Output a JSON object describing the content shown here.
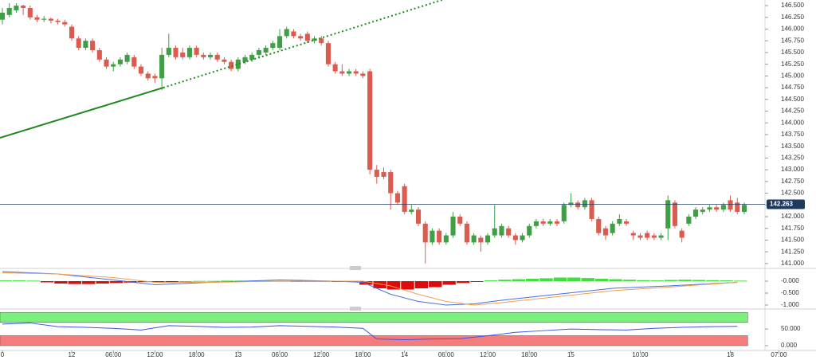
{
  "chart_data": [
    {
      "type": "candlestick",
      "xlim": [
        -0.345,
        117.35
      ],
      "x": [
        0,
        1,
        2,
        3,
        4,
        5,
        6,
        7,
        8,
        9,
        10,
        11,
        12,
        13,
        14,
        15,
        16,
        17,
        18,
        19,
        20,
        21,
        22,
        23,
        24,
        25,
        26,
        27,
        28,
        29,
        30,
        31,
        32,
        33,
        34,
        35,
        36,
        37,
        38,
        39,
        40,
        41,
        42,
        43,
        44,
        45,
        46,
        47,
        48,
        49,
        50,
        51,
        52,
        53,
        54,
        55,
        56,
        57,
        58,
        59,
        60,
        61,
        62,
        63,
        64,
        65,
        66,
        67,
        68,
        69,
        70,
        71,
        72,
        73,
        74,
        75,
        76,
        77,
        78,
        79,
        80,
        81,
        82,
        83,
        84,
        85,
        86,
        87,
        88,
        89,
        90,
        91,
        92,
        93,
        94,
        95,
        96,
        97,
        98,
        99,
        100,
        101,
        102,
        103,
        104,
        105,
        106,
        107
      ],
      "open": [
        146.2,
        146.3,
        146.4,
        146.5,
        146.45,
        146.25,
        146.2,
        146.22,
        146.18,
        146.15,
        146.05,
        145.8,
        145.6,
        145.75,
        145.55,
        145.35,
        145.2,
        145.25,
        145.3,
        145.4,
        145.2,
        145.05,
        145.0,
        144.95,
        145.45,
        145.6,
        145.5,
        145.4,
        145.6,
        145.45,
        145.4,
        145.45,
        145.35,
        145.3,
        145.15,
        145.3,
        145.35,
        145.45,
        145.5,
        145.6,
        145.6,
        145.85,
        145.95,
        145.85,
        145.9,
        145.75,
        145.8,
        145.7,
        145.25,
        145.1,
        145.05,
        145.1,
        145.05,
        145.1,
        143.0,
        142.95,
        142.95,
        142.5,
        142.65,
        142.1,
        142.15,
        141.85,
        141.45,
        141.7,
        141.45,
        141.6,
        142.0,
        141.85,
        141.45,
        141.55,
        141.45,
        141.6,
        141.6,
        141.75,
        141.6,
        141.5,
        141.6,
        141.8,
        141.9,
        141.85,
        141.9,
        141.9,
        142.25,
        142.3,
        142.2,
        142.35,
        141.95,
        141.75,
        141.65,
        141.85,
        141.9,
        141.65,
        141.6,
        141.65,
        141.6,
        141.55,
        141.75,
        142.3,
        141.7,
        141.85,
        142.0,
        142.1,
        142.15,
        142.2,
        142.15,
        142.35,
        142.3,
        142.1
      ],
      "high": [
        146.45,
        146.55,
        146.55,
        146.52,
        146.5,
        146.3,
        146.28,
        146.25,
        146.22,
        146.2,
        146.1,
        145.85,
        145.8,
        145.8,
        145.6,
        145.4,
        145.3,
        145.4,
        145.5,
        145.45,
        145.25,
        145.1,
        145.05,
        145.6,
        145.9,
        145.65,
        145.6,
        145.65,
        145.65,
        145.5,
        145.5,
        145.5,
        145.4,
        145.35,
        145.4,
        145.45,
        145.5,
        145.6,
        145.65,
        145.75,
        146.0,
        146.05,
        146.0,
        145.9,
        145.95,
        145.85,
        145.85,
        145.75,
        145.3,
        145.25,
        145.15,
        145.15,
        145.1,
        145.15,
        143.1,
        143.05,
        143.0,
        142.55,
        142.7,
        142.25,
        142.2,
        141.9,
        141.75,
        141.75,
        141.65,
        142.1,
        142.05,
        141.9,
        141.65,
        141.6,
        141.65,
        142.25,
        141.85,
        141.8,
        141.65,
        141.65,
        141.85,
        141.95,
        141.95,
        141.95,
        141.95,
        142.3,
        142.5,
        142.35,
        142.4,
        142.4,
        142.0,
        141.8,
        141.9,
        142.05,
        141.95,
        141.7,
        141.65,
        141.7,
        141.65,
        141.65,
        142.45,
        142.35,
        141.75,
        142.05,
        142.2,
        142.2,
        142.25,
        142.25,
        142.3,
        142.45,
        142.4,
        142.3
      ],
      "low": [
        146.1,
        146.25,
        146.35,
        146.3,
        146.2,
        146.15,
        146.15,
        146.12,
        146.1,
        146.05,
        145.75,
        145.55,
        145.55,
        145.5,
        145.3,
        145.15,
        145.1,
        145.2,
        145.25,
        145.15,
        145.0,
        144.9,
        144.85,
        144.7,
        145.4,
        145.35,
        145.35,
        145.35,
        145.4,
        145.35,
        145.35,
        145.3,
        145.25,
        145.1,
        145.1,
        145.25,
        145.3,
        145.4,
        145.45,
        145.55,
        145.55,
        145.8,
        145.8,
        145.75,
        145.7,
        145.7,
        145.65,
        145.2,
        145.05,
        145.0,
        145.0,
        145.0,
        144.95,
        142.9,
        142.7,
        142.8,
        142.15,
        142.25,
        142.05,
        142.05,
        141.8,
        141.0,
        141.4,
        141.4,
        141.4,
        141.55,
        141.8,
        141.4,
        141.4,
        141.25,
        141.4,
        141.55,
        141.55,
        141.55,
        141.4,
        141.45,
        141.55,
        141.75,
        141.8,
        141.8,
        141.8,
        141.85,
        142.2,
        142.15,
        142.15,
        141.9,
        141.6,
        141.5,
        141.6,
        141.8,
        141.8,
        141.5,
        141.5,
        141.5,
        141.5,
        141.5,
        141.5,
        141.75,
        141.45,
        141.8,
        141.95,
        142.05,
        142.1,
        142.1,
        142.1,
        142.1,
        142.05,
        142.05
      ],
      "close": [
        146.35,
        146.45,
        146.5,
        146.45,
        146.25,
        146.2,
        146.22,
        146.18,
        146.15,
        146.1,
        145.8,
        145.6,
        145.75,
        145.55,
        145.35,
        145.2,
        145.25,
        145.35,
        145.45,
        145.2,
        145.05,
        144.95,
        144.95,
        145.45,
        145.6,
        145.4,
        145.4,
        145.6,
        145.45,
        145.4,
        145.45,
        145.35,
        145.3,
        145.15,
        145.35,
        145.4,
        145.45,
        145.55,
        145.6,
        145.7,
        145.85,
        146.0,
        145.85,
        145.8,
        145.75,
        145.8,
        145.7,
        145.25,
        145.1,
        145.05,
        145.1,
        145.05,
        145.0,
        143.0,
        142.85,
        142.85,
        142.5,
        142.3,
        142.1,
        142.15,
        141.85,
        141.45,
        141.7,
        141.45,
        141.6,
        142.0,
        141.85,
        141.45,
        141.6,
        141.45,
        141.6,
        141.75,
        141.8,
        141.6,
        141.5,
        141.6,
        141.8,
        141.9,
        141.85,
        141.9,
        141.85,
        142.25,
        142.3,
        142.2,
        142.35,
        141.95,
        141.65,
        141.6,
        141.85,
        141.95,
        141.85,
        141.6,
        141.55,
        141.55,
        141.55,
        141.6,
        142.35,
        141.8,
        141.55,
        142.0,
        142.15,
        142.15,
        142.2,
        142.15,
        142.25,
        142.15,
        142.1,
        142.25
      ],
      "up_color": "#3e9f45",
      "down_color": "#dc5b4f",
      "ylim": [
        140.93,
        146.62
      ],
      "yticks": [
        {
          "value": 141,
          "label": "141.000"
        },
        {
          "value": 141.25,
          "label": "141.250"
        },
        {
          "value": 141.5,
          "label": "141.500"
        },
        {
          "value": 141.75,
          "label": "141.750"
        },
        {
          "value": 142,
          "label": "142.000"
        },
        {
          "value": 142.25,
          "label": "142.250"
        },
        {
          "value": 142.5,
          "label": "142.500"
        },
        {
          "value": 142.75,
          "label": "142.750"
        },
        {
          "value": 143,
          "label": "143.000"
        },
        {
          "value": 143.25,
          "label": "143.250"
        },
        {
          "value": 143.5,
          "label": "143.500"
        },
        {
          "value": 143.75,
          "label": "143.750"
        },
        {
          "value": 144,
          "label": "144.000"
        },
        {
          "value": 144.25,
          "label": "144.250"
        },
        {
          "value": 144.5,
          "label": "144.500"
        },
        {
          "value": 144.75,
          "label": "144.750"
        },
        {
          "value": 145,
          "label": "145.000"
        },
        {
          "value": 145.25,
          "label": "145.250"
        },
        {
          "value": 145.5,
          "label": "145.500"
        },
        {
          "value": 145.75,
          "label": "145.750"
        },
        {
          "value": 146,
          "label": "146.000"
        },
        {
          "value": 146.25,
          "label": "146.250"
        },
        {
          "value": 146.5,
          "label": "146.500"
        }
      ],
      "xticks": [
        0,
        {
          "value": 10,
          "label": "12"
        },
        {
          "value": 16,
          "label": "06:00"
        },
        {
          "value": 22,
          "label": "12:00"
        },
        {
          "value": 28,
          "label": "18:00"
        },
        {
          "value": 34,
          "label": "13"
        },
        {
          "value": 40,
          "label": "06:00"
        },
        {
          "value": 46,
          "label": "12:00"
        },
        {
          "value": 52,
          "label": "18:00"
        },
        {
          "value": 58,
          "label": "14"
        },
        {
          "value": 64,
          "label": "06:00"
        },
        {
          "value": 70,
          "label": "12:00"
        },
        {
          "value": 76,
          "label": "18:00"
        },
        {
          "value": 82,
          "label": "15"
        },
        {
          "value": 92,
          "label": "10:00"
        },
        {
          "value": 105,
          "label": "18"
        },
        {
          "value": 112,
          "label": "07:00"
        }
      ],
      "last_price": {
        "value": 142.263,
        "label": "142.263"
      },
      "last_price_color": "#1f3a5f",
      "trendline": {
        "x": [
          -0.345,
          23.2,
          63.4
        ],
        "y": [
          143.68,
          144.75,
          146.62
        ],
        "color": "#1e8a1e"
      }
    },
    {
      "type": "macd",
      "ylim": [
        -1.167,
        0.433
      ],
      "yticks": [
        {
          "value": 0,
          "label": "-0.000"
        },
        {
          "value": -0.5,
          "label": "-0.500"
        },
        {
          "value": -1,
          "label": "-1.000"
        }
      ],
      "hist_x": [
        0,
        2,
        4,
        6,
        8,
        10,
        12,
        14,
        16,
        18,
        20,
        22,
        24,
        26,
        28,
        30,
        32,
        34,
        36,
        38,
        40,
        42,
        44,
        46,
        48,
        50,
        52,
        54,
        56,
        58,
        60,
        62,
        64,
        66,
        68,
        70,
        72,
        74,
        76,
        78,
        80,
        82,
        84,
        86,
        88,
        90,
        92,
        94,
        96,
        98,
        100,
        102,
        104,
        106
      ],
      "histogram": [
        0.03,
        0.03,
        0.02,
        -0.05,
        -0.1,
        -0.12,
        -0.12,
        -0.1,
        -0.08,
        -0.06,
        -0.04,
        -0.02,
        -0.01,
        0,
        0.01,
        0.01,
        0.02,
        0.02,
        0.02,
        0.01,
        0.01,
        0,
        0,
        0,
        -0.01,
        -0.02,
        -0.15,
        -0.3,
        -0.35,
        -0.35,
        -0.3,
        -0.25,
        -0.15,
        -0.08,
        -0.03,
        0.03,
        0.06,
        0.08,
        0.1,
        0.12,
        0.15,
        0.15,
        0.13,
        0.1,
        0.08,
        0.06,
        0.04,
        0.03,
        0.05,
        0.06,
        0.05,
        0.04,
        0.03,
        0.02
      ],
      "pos_color": "#3de03d",
      "neg_color": "#e00a0a",
      "series": [
        {
          "color": "#4a6ee0",
          "x": [
            0,
            8,
            16,
            22,
            30,
            40,
            48,
            52,
            56,
            60,
            64,
            68,
            72,
            80,
            88,
            96,
            106
          ],
          "values": [
            0.4,
            0.3,
            0.05,
            -0.15,
            -0.05,
            0.05,
            0,
            -0.05,
            -0.55,
            -0.85,
            -1.0,
            -0.95,
            -0.8,
            -0.55,
            -0.3,
            -0.2,
            -0.05
          ]
        },
        {
          "color": "#f0a050",
          "x": [
            0,
            8,
            16,
            22,
            30,
            40,
            48,
            52,
            56,
            60,
            64,
            68,
            72,
            80,
            88,
            96,
            106
          ],
          "values": [
            0.35,
            0.3,
            0.15,
            -0.05,
            -0.05,
            0,
            0,
            0,
            -0.2,
            -0.55,
            -0.85,
            -1.0,
            -0.9,
            -0.65,
            -0.4,
            -0.25,
            -0.05
          ]
        }
      ]
    },
    {
      "type": "rsi",
      "ylim": [
        -14.3,
        105.2
      ],
      "yticks": [
        {
          "value": 50,
          "label": "50.000"
        },
        {
          "value": 0,
          "label": "0.000"
        }
      ],
      "bands": [
        {
          "range": [
            70,
            100
          ],
          "color": "#7cf07c"
        },
        {
          "range": [
            0,
            30
          ],
          "color": "#f47c7c"
        }
      ],
      "series": [
        {
          "color": "#3b55e6",
          "x": [
            0,
            4,
            8,
            12,
            16,
            20,
            24,
            28,
            32,
            36,
            40,
            44,
            48,
            52,
            54,
            58,
            62,
            66,
            70,
            74,
            78,
            82,
            86,
            90,
            94,
            98,
            102,
            106
          ],
          "values": [
            65,
            68,
            57,
            55,
            52,
            47,
            60,
            58,
            55,
            56,
            60,
            58,
            56,
            52,
            20,
            18,
            20,
            21,
            30,
            40,
            45,
            50,
            48,
            47,
            52,
            55,
            57,
            58
          ]
        }
      ]
    }
  ]
}
